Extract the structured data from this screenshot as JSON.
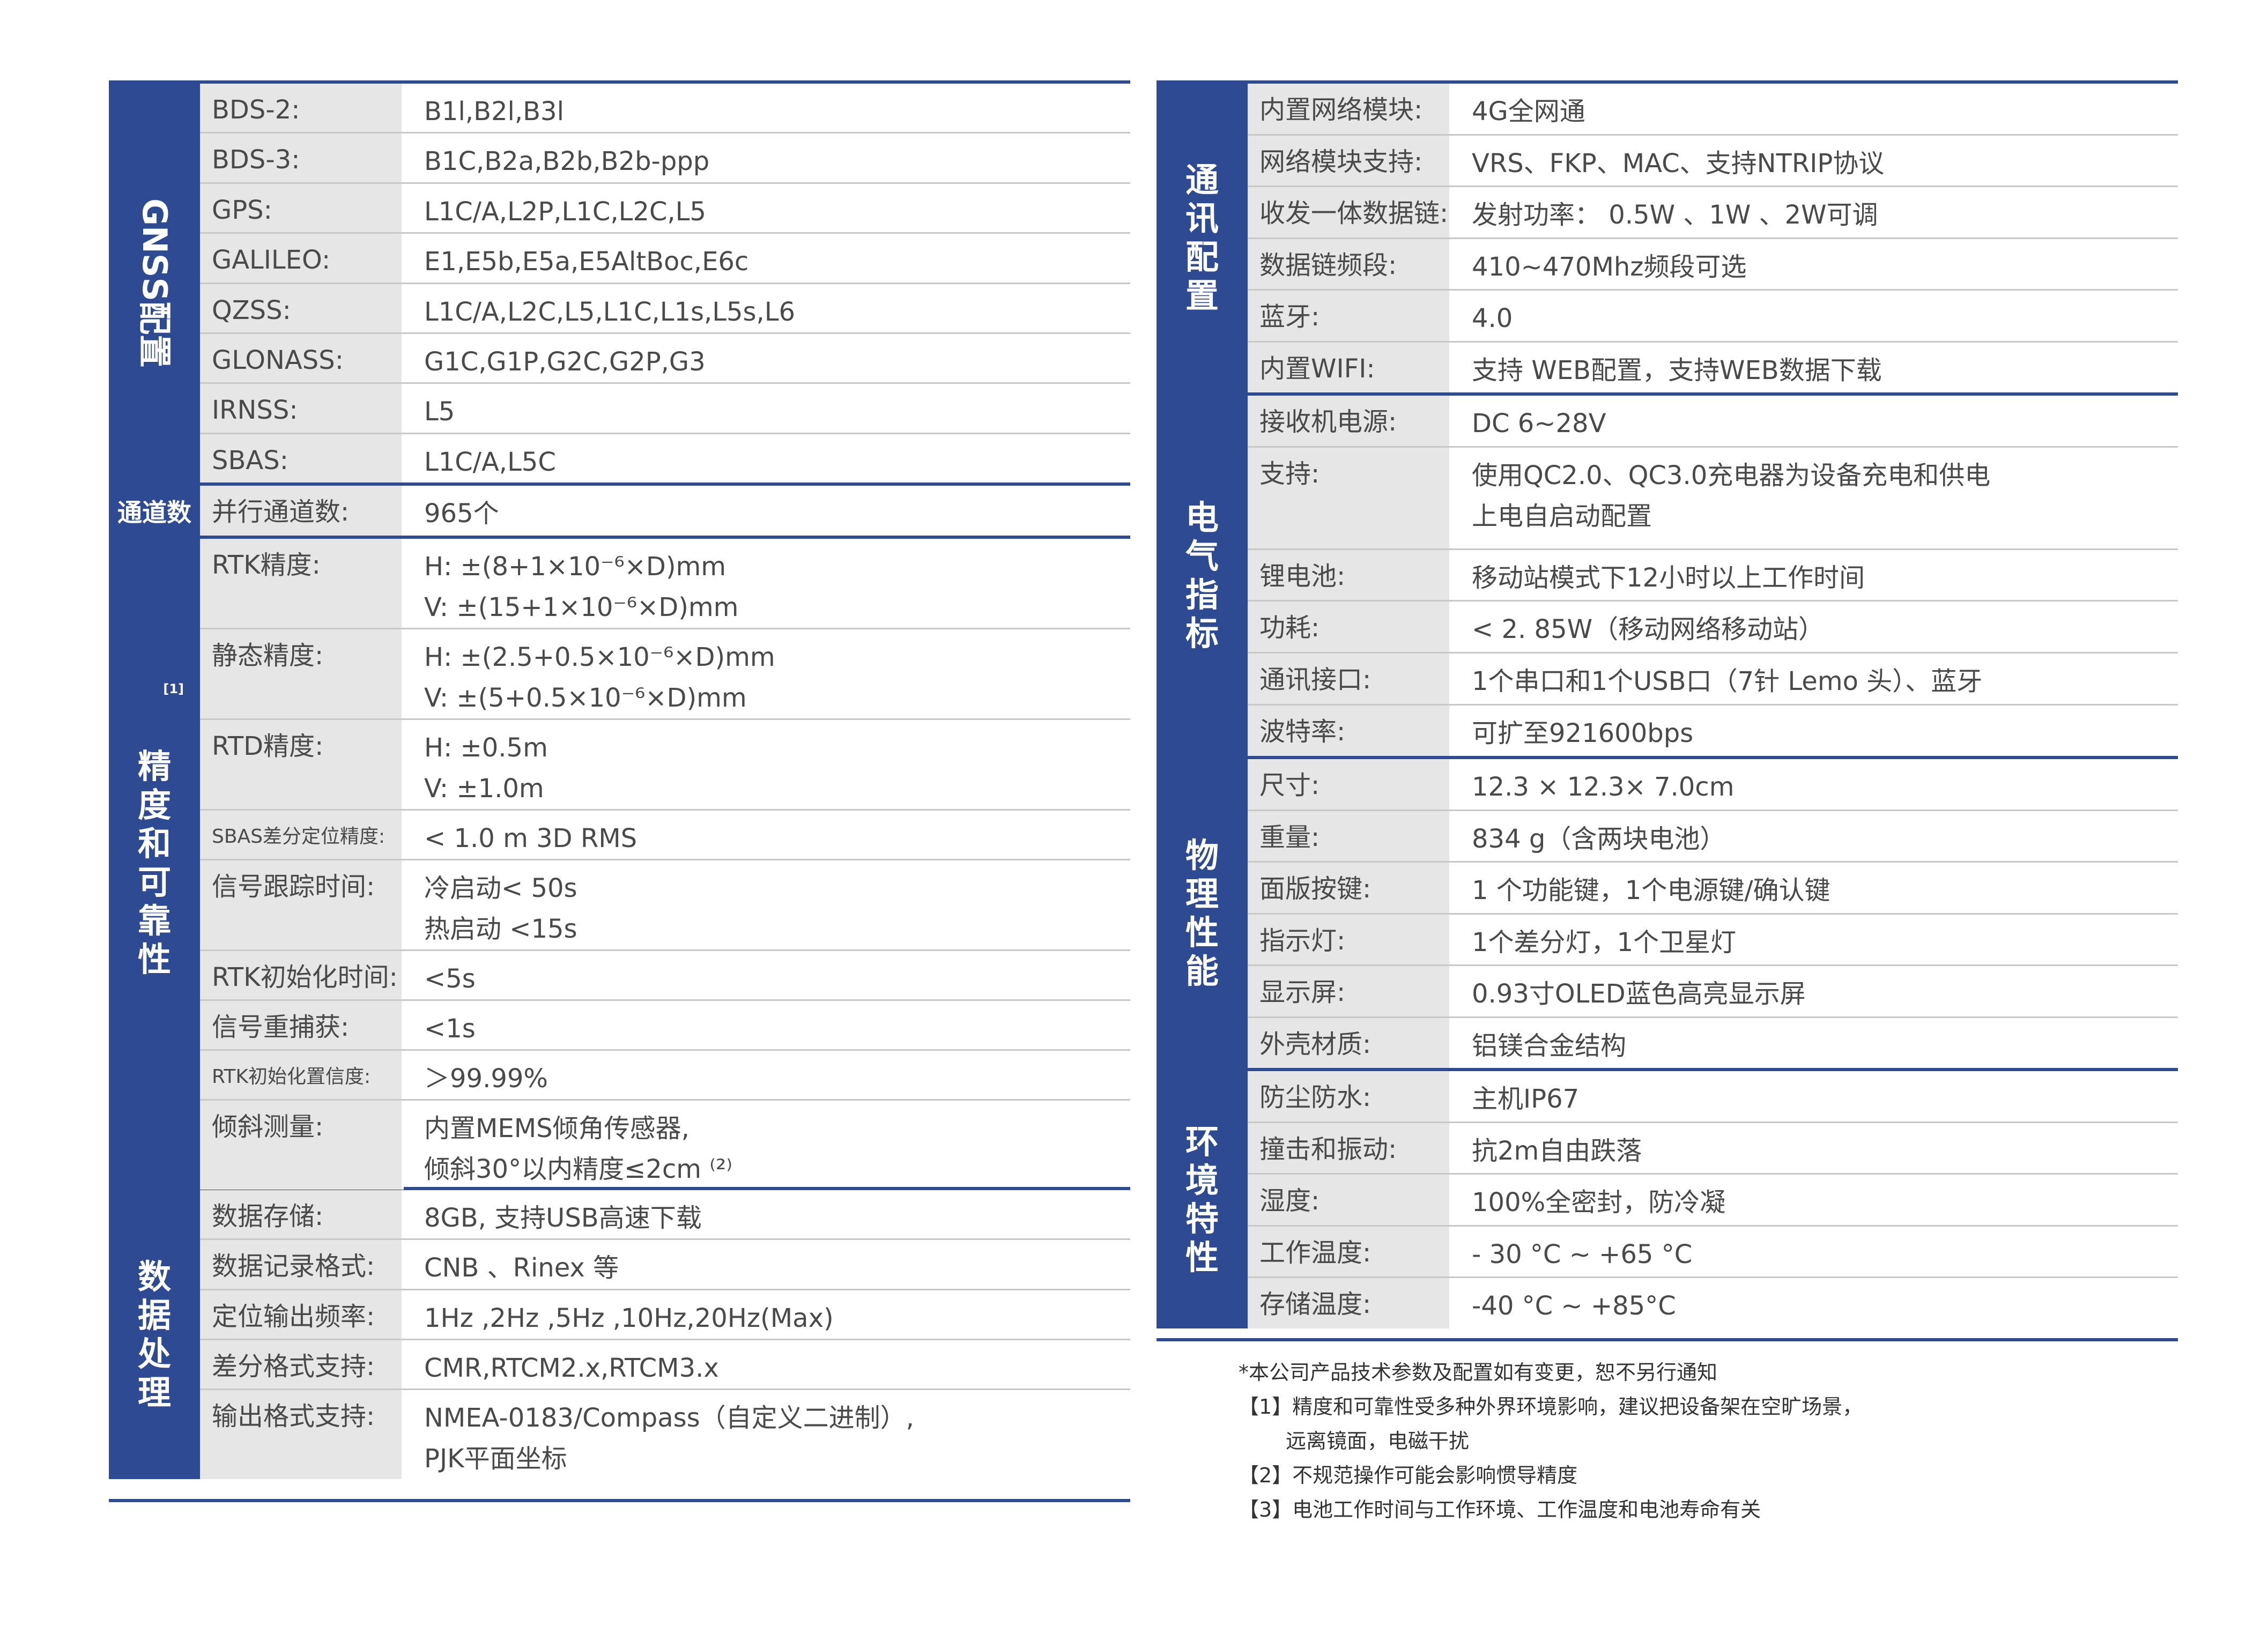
{
  "left_table": {
    "sections": [
      {
        "title": "GNSS配置",
        "title_chars": [
          "G",
          "N",
          "S",
          "S",
          "配",
          "置"
        ],
        "orientation": "vertical-rotated",
        "rows": [
          {
            "label": "BDS-2:",
            "values": [
              "B1l,B2l,B3l"
            ]
          },
          {
            "label": "BDS-3:",
            "values": [
              "B1C,B2a,B2b,B2b-ppp"
            ]
          },
          {
            "label": "GPS:",
            "values": [
              "L1C/A,L2P,L1C,L2C,L5"
            ]
          },
          {
            "label": "GALILEO:",
            "values": [
              "E1,E5b,E5a,E5AltBoc,E6c"
            ]
          },
          {
            "label": "QZSS:",
            "values": [
              "L1C/A,L2C,L5,L1C,L1s,L5s,L6"
            ]
          },
          {
            "label": "GLONASS:",
            "values": [
              "G1C,G1P,G2C,G2P,G3"
            ]
          },
          {
            "label": "IRNSS:",
            "values": [
              "L5"
            ]
          },
          {
            "label": "SBAS:",
            "values": [
              "L1C/A,L5C"
            ]
          }
        ]
      },
      {
        "title": "通道数",
        "orientation": "horizontal",
        "rows": [
          {
            "label": "并行通道数:",
            "values": [
              "965个"
            ]
          }
        ]
      },
      {
        "title": "精度和可靠性",
        "title_chars": [
          "精",
          "度",
          "和",
          "可",
          "靠",
          "性"
        ],
        "title_sup": "[1]",
        "orientation": "vertical",
        "rows": [
          {
            "label": "RTK精度:",
            "values": [
              "H: ±(8+1×10⁻⁶×D)mm",
              "V: ±(15+1×10⁻⁶×D)mm"
            ]
          },
          {
            "label": "静态精度:",
            "values": [
              "H: ±(2.5+0.5×10⁻⁶×D)mm",
              "V: ±(5+0.5×10⁻⁶×D)mm"
            ]
          },
          {
            "label": "RTD精度:",
            "values": [
              "H: ±0.5m",
              "V: ±1.0m"
            ]
          },
          {
            "label": "SBAS差分定位精度:",
            "values": [
              "< 1.0 m 3D RMS"
            ],
            "small": true
          },
          {
            "label": "信号跟踪时间:",
            "values": [
              "冷启动< 50s",
              "热启动 <15s"
            ]
          },
          {
            "label": "RTK初始化时间:",
            "values": [
              "<5s"
            ]
          },
          {
            "label": "信号重捕获:",
            "values": [
              "<1s"
            ]
          },
          {
            "label": "RTK初始化置信度:",
            "values": [
              "＞99.99%"
            ],
            "small": true
          },
          {
            "label": "倾斜测量:",
            "values": [
              "内置MEMS倾角传感器,",
              "倾斜30°以内精度≤2cm ⁽²⁾"
            ]
          }
        ]
      },
      {
        "title": "数据处理",
        "title_chars": [
          "数",
          "据",
          "处",
          "理"
        ],
        "orientation": "vertical",
        "rows": [
          {
            "label": "数据存储:",
            "values": [
              "8GB, 支持USB高速下载"
            ]
          },
          {
            "label": "数据记录格式:",
            "values": [
              "CNB 、Rinex 等"
            ]
          },
          {
            "label": "定位输出频率:",
            "values": [
              "1Hz ,2Hz ,5Hz ,10Hz,20Hz(Max)"
            ]
          },
          {
            "label": "差分格式支持:",
            "values": [
              "CMR,RTCM2.x,RTCM3.x"
            ]
          },
          {
            "label": "输出格式支持:",
            "values": [
              "NMEA-0183/Compass（自定义二进制）,",
              "PJK平面坐标"
            ]
          }
        ]
      }
    ]
  },
  "right_table": {
    "sections": [
      {
        "title": "通讯配置",
        "title_chars": [
          "通",
          "讯",
          "配",
          "置"
        ],
        "orientation": "vertical",
        "rows": [
          {
            "label": "内置网络模块:",
            "values": [
              "4G全网通"
            ]
          },
          {
            "label": "网络模块支持:",
            "values": [
              "VRS、FKP、MAC、支持NTRIP协议"
            ]
          },
          {
            "label": "收发一体数据链:",
            "values": [
              "发射功率： 0.5W 、1W 、2W可调"
            ]
          },
          {
            "label": "数据链频段:",
            "values": [
              "410~470Mhz频段可选"
            ]
          },
          {
            "label": "蓝牙:",
            "values": [
              "4.0"
            ]
          },
          {
            "label": "内置WIFI:",
            "values": [
              "支持 WEB配置，支持WEB数据下载"
            ]
          }
        ]
      },
      {
        "title": "电气指标",
        "title_chars": [
          "电",
          "气",
          "指",
          "标"
        ],
        "orientation": "vertical",
        "rows": [
          {
            "label": "接收机电源:",
            "values": [
              "DC 6~28V"
            ]
          },
          {
            "label": "支持:",
            "values": [
              "使用QC2.0、QC3.0充电器为设备充电和供电",
              "上电自启动配置"
            ]
          },
          {
            "label": "锂电池:",
            "values": [
              "移动站模式下12小时以上工作时间"
            ]
          },
          {
            "label": "功耗:",
            "values": [
              "< 2. 85W（移动网络移动站）"
            ]
          },
          {
            "label": "通讯接口:",
            "values": [
              "1个串口和1个USB口（7针 Lemo 头）、蓝牙"
            ]
          },
          {
            "label": "波特率:",
            "values": [
              "可扩至921600bps"
            ]
          }
        ]
      },
      {
        "title": "物理性能",
        "title_chars": [
          "物",
          "理",
          "性",
          "能"
        ],
        "orientation": "vertical",
        "rows": [
          {
            "label": "尺寸:",
            "values": [
              "12.3 × 12.3× 7.0cm"
            ]
          },
          {
            "label": "重量:",
            "values": [
              "834 g（含两块电池）"
            ]
          },
          {
            "label": "面版按键:",
            "values": [
              "1 个功能键，1个电源键/确认键"
            ]
          },
          {
            "label": "指示灯:",
            "values": [
              "1个差分灯，1个卫星灯"
            ]
          },
          {
            "label": "显示屏:",
            "values": [
              "0.93寸OLED蓝色高亮显示屏"
            ]
          },
          {
            "label": "外壳材质:",
            "values": [
              "铝镁合金结构"
            ]
          }
        ]
      },
      {
        "title": "环境特性",
        "title_chars": [
          "环",
          "境",
          "特",
          "性"
        ],
        "orientation": "vertical",
        "rows": [
          {
            "label": "防尘防水:",
            "values": [
              "主机IP67"
            ]
          },
          {
            "label": "撞击和振动:",
            "values": [
              "抗2m自由跌落"
            ]
          },
          {
            "label": "湿度:",
            "values": [
              "100%全密封，防冷凝"
            ]
          },
          {
            "label": "工作温度:",
            "values": [
              "- 30 °C ~ +65 °C"
            ]
          },
          {
            "label": "存储温度:",
            "values": [
              "-40 °C ~ +85°C"
            ]
          }
        ]
      }
    ]
  },
  "notes": {
    "disclaimer": "*本公司产品技术参数及配置如有变更，恕不另行通知",
    "note1": "【1】精度和可靠性受多种外界环境影响，建议把设备架在空旷场景，",
    "note1_cont": "远离镜面，电磁干扰",
    "note2": "【2】不规范操作可能会影响惯导精度",
    "note3": "【3】电池工作时间与工作环境、工作温度和电池寿命有关"
  },
  "colors": {
    "accent": "#2d4a93",
    "label_bg": "#e6e6e6",
    "text": "#4a4a4a",
    "rule": "#c8c8c8"
  }
}
